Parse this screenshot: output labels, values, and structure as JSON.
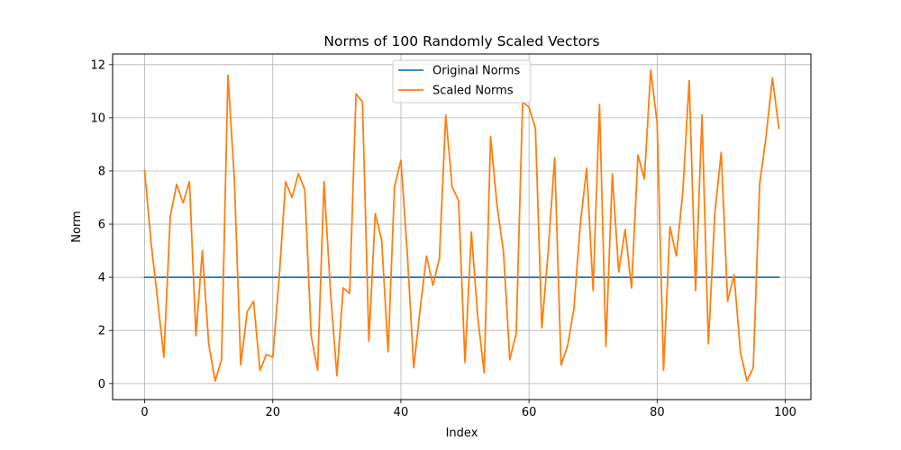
{
  "chart_data": {
    "type": "line",
    "title": "Norms of 100 Randomly Scaled Vectors",
    "xlabel": "Index",
    "ylabel": "Norm",
    "xlim": [
      -5,
      104
    ],
    "ylim": [
      -0.6,
      12.4
    ],
    "xticks": [
      0,
      20,
      40,
      60,
      80,
      100
    ],
    "yticks": [
      0,
      2,
      4,
      6,
      8,
      10,
      12
    ],
    "grid": true,
    "legend_position": "top-center",
    "series": [
      {
        "name": "Original Norms",
        "color": "#1f77b4",
        "x_start": 0,
        "values": [
          4,
          4,
          4,
          4,
          4,
          4,
          4,
          4,
          4,
          4,
          4,
          4,
          4,
          4,
          4,
          4,
          4,
          4,
          4,
          4,
          4,
          4,
          4,
          4,
          4,
          4,
          4,
          4,
          4,
          4,
          4,
          4,
          4,
          4,
          4,
          4,
          4,
          4,
          4,
          4,
          4,
          4,
          4,
          4,
          4,
          4,
          4,
          4,
          4,
          4,
          4,
          4,
          4,
          4,
          4,
          4,
          4,
          4,
          4,
          4,
          4,
          4,
          4,
          4,
          4,
          4,
          4,
          4,
          4,
          4,
          4,
          4,
          4,
          4,
          4,
          4,
          4,
          4,
          4,
          4,
          4,
          4,
          4,
          4,
          4,
          4,
          4,
          4,
          4,
          4,
          4,
          4,
          4,
          4,
          4,
          4,
          4,
          4,
          4,
          4
        ]
      },
      {
        "name": "Scaled Norms",
        "color": "#ff7f0e",
        "x_start": 0,
        "values": [
          8.0,
          5.3,
          3.2,
          1.0,
          6.3,
          7.5,
          6.8,
          7.6,
          1.8,
          5.0,
          1.5,
          0.1,
          0.9,
          11.6,
          7.7,
          0.7,
          2.7,
          3.1,
          0.5,
          1.1,
          1.0,
          4.0,
          7.6,
          7.0,
          7.9,
          7.3,
          1.8,
          0.5,
          7.6,
          3.5,
          0.3,
          3.6,
          3.4,
          10.9,
          10.6,
          1.6,
          6.4,
          5.4,
          1.2,
          7.4,
          8.4,
          4.9,
          0.6,
          2.8,
          4.8,
          3.7,
          4.7,
          10.1,
          7.4,
          6.9,
          0.8,
          5.7,
          2.5,
          0.4,
          9.3,
          6.7,
          5.0,
          0.9,
          1.9,
          10.6,
          10.4,
          9.6,
          2.1,
          5.0,
          8.5,
          0.7,
          1.4,
          2.8,
          6.0,
          8.1,
          3.5,
          10.5,
          1.4,
          7.9,
          4.2,
          5.8,
          3.6,
          8.6,
          7.7,
          11.8,
          9.8,
          0.5,
          5.9,
          4.8,
          7.2,
          11.4,
          3.5,
          10.1,
          1.5,
          6.4,
          8.7,
          3.1,
          4.1,
          1.2,
          0.1,
          0.6,
          7.5,
          9.3,
          11.5,
          9.6
        ]
      }
    ]
  }
}
